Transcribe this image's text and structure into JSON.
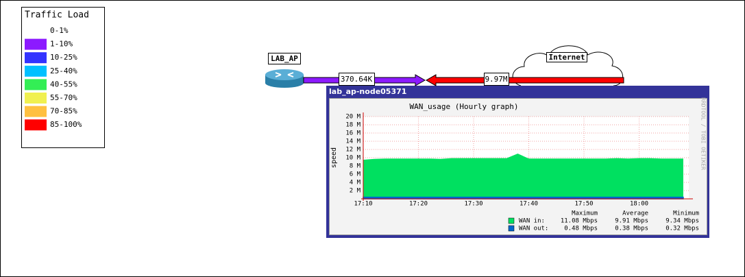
{
  "legend": {
    "title": "Traffic Load",
    "items": [
      {
        "label": "0-1%",
        "color": "#ffffff"
      },
      {
        "label": "1-10%",
        "color": "#8c1aff"
      },
      {
        "label": "10-25%",
        "color": "#3333ff"
      },
      {
        "label": "25-40%",
        "color": "#00c0ff"
      },
      {
        "label": "40-55%",
        "color": "#33ee55"
      },
      {
        "label": "55-70%",
        "color": "#f0f050"
      },
      {
        "label": "70-85%",
        "color": "#ffc040"
      },
      {
        "label": "85-100%",
        "color": "#ff0000"
      }
    ]
  },
  "nodes": [
    {
      "label": "LAB_AP"
    },
    {
      "label": "Internet"
    }
  ],
  "link": {
    "out_label": "370.64K",
    "out_color": "#8c1aff",
    "in_label": "9.97M",
    "in_color": "#ff0000"
  },
  "popup": {
    "title": "lab_ap-node05371",
    "graph": {
      "type": "area",
      "title": "WAN_usage (Hourly graph)",
      "y_label": "speed",
      "watermark": "RRDTOOL / TOBI OETIKER",
      "x": [
        1030,
        1032,
        1034,
        1036,
        1038,
        1040,
        1042,
        1044,
        1046,
        1048,
        1050,
        1052,
        1054,
        1056,
        1058,
        1060,
        1062,
        1064,
        1066,
        1068,
        1070,
        1072,
        1074,
        1076,
        1078,
        1080,
        1082,
        1084,
        1086,
        1088
      ],
      "xlim": [
        1030,
        1089
      ],
      "xticks": [
        {
          "value": 1030,
          "label": "17:10"
        },
        {
          "value": 1040,
          "label": "17:20"
        },
        {
          "value": 1050,
          "label": "17:30"
        },
        {
          "value": 1060,
          "label": "17:40"
        },
        {
          "value": 1070,
          "label": "17:50"
        },
        {
          "value": 1080,
          "label": "18:00"
        }
      ],
      "ylim": [
        0,
        20
      ],
      "yticks": [
        {
          "value": 2,
          "label": "2 M"
        },
        {
          "value": 4,
          "label": "4 M"
        },
        {
          "value": 6,
          "label": "6 M"
        },
        {
          "value": 8,
          "label": "8 M"
        },
        {
          "value": 10,
          "label": "10 M"
        },
        {
          "value": 12,
          "label": "12 M"
        },
        {
          "value": 14,
          "label": "14 M"
        },
        {
          "value": 16,
          "label": "16 M"
        },
        {
          "value": 18,
          "label": "18 M"
        },
        {
          "value": 20,
          "label": "20 M"
        }
      ],
      "series": [
        {
          "name": "WAN in:",
          "color": "#00e060",
          "values": [
            9.5,
            9.7,
            9.8,
            9.8,
            9.8,
            9.8,
            9.8,
            9.7,
            9.9,
            9.9,
            9.9,
            9.9,
            9.9,
            9.9,
            11.0,
            9.8,
            9.8,
            9.8,
            9.8,
            9.8,
            9.8,
            9.8,
            9.8,
            9.9,
            9.8,
            9.9,
            9.9,
            9.8,
            9.8,
            9.8
          ]
        },
        {
          "name": "WAN out:",
          "color": "#0066cc",
          "values": [
            0.4,
            0.4,
            0.4,
            0.4,
            0.4,
            0.4,
            0.4,
            0.4,
            0.4,
            0.4,
            0.4,
            0.4,
            0.4,
            0.4,
            0.4,
            0.4,
            0.4,
            0.4,
            0.4,
            0.4,
            0.4,
            0.4,
            0.4,
            0.4,
            0.4,
            0.4,
            0.4,
            0.4,
            0.4,
            0.4
          ]
        }
      ],
      "stats_headers": [
        "Maximum",
        "Average",
        "Minimum"
      ],
      "stats": [
        [
          "11.08 Mbps",
          "9.91 Mbps",
          "9.34 Mbps"
        ],
        [
          "0.48 Mbps",
          "0.38 Mbps",
          "0.32 Mbps"
        ]
      ]
    }
  }
}
